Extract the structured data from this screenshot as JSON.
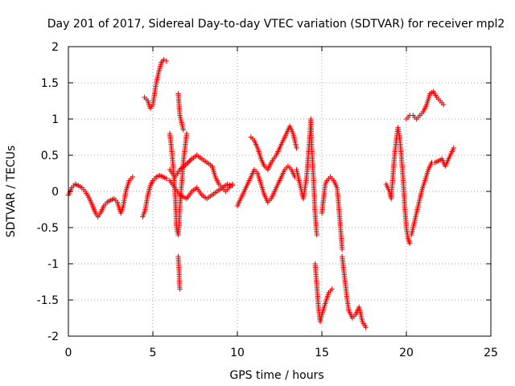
{
  "chart_data": {
    "type": "scatter",
    "title": "Day 201 of 2017, Sidereal Day-to-day VTEC variation (SDTVAR) for receiver mpl2",
    "xlabel": "GPS time / hours",
    "ylabel": "SDTVAR / TECUs",
    "xlim": [
      0,
      25
    ],
    "ylim": [
      -2,
      2
    ],
    "xticks": [
      0,
      5,
      10,
      15,
      20,
      25
    ],
    "yticks": [
      -2,
      -1.5,
      -1,
      -0.5,
      0,
      0.5,
      1,
      1.5,
      2
    ],
    "xtick_labels": [
      "0",
      "5",
      "10",
      "15",
      "20",
      "25"
    ],
    "ytick_labels": [
      "-2",
      "-1.5",
      "-1",
      "-0.5",
      "0",
      "0.5",
      "1",
      "1.5",
      "2"
    ],
    "grid": true,
    "marker": "plus",
    "color": "#ff0000",
    "series": [
      {
        "name": "seg-0-3.8",
        "points": [
          [
            0.0,
            -0.05
          ],
          [
            0.2,
            0.05
          ],
          [
            0.4,
            0.1
          ],
          [
            0.6,
            0.08
          ],
          [
            0.8,
            0.05
          ],
          [
            1.0,
            0.0
          ],
          [
            1.2,
            -0.08
          ],
          [
            1.4,
            -0.18
          ],
          [
            1.6,
            -0.3
          ],
          [
            1.75,
            -0.35
          ],
          [
            1.9,
            -0.3
          ],
          [
            2.1,
            -0.2
          ],
          [
            2.3,
            -0.15
          ],
          [
            2.5,
            -0.12
          ],
          [
            2.7,
            -0.1
          ],
          [
            2.9,
            -0.15
          ],
          [
            3.1,
            -0.3
          ],
          [
            3.25,
            -0.2
          ],
          [
            3.4,
            0.0
          ],
          [
            3.6,
            0.15
          ],
          [
            3.8,
            0.2
          ]
        ]
      },
      {
        "name": "seg-4.5-5.8-high",
        "points": [
          [
            4.5,
            1.3
          ],
          [
            4.7,
            1.25
          ],
          [
            4.85,
            1.15
          ],
          [
            5.0,
            1.2
          ],
          [
            5.1,
            1.35
          ],
          [
            5.2,
            1.5
          ],
          [
            5.35,
            1.65
          ],
          [
            5.5,
            1.78
          ],
          [
            5.65,
            1.82
          ],
          [
            5.8,
            1.8
          ]
        ]
      },
      {
        "name": "seg-4.4-5.8-low",
        "points": [
          [
            4.4,
            -0.35
          ],
          [
            4.55,
            -0.25
          ],
          [
            4.7,
            -0.05
          ],
          [
            4.85,
            0.08
          ],
          [
            5.0,
            0.15
          ],
          [
            5.2,
            0.2
          ],
          [
            5.4,
            0.22
          ],
          [
            5.6,
            0.2
          ],
          [
            5.8,
            0.18
          ]
        ]
      },
      {
        "name": "seg-6-7-spikes",
        "points": [
          [
            6.0,
            0.8
          ],
          [
            6.1,
            0.6
          ],
          [
            6.2,
            0.35
          ],
          [
            6.3,
            0.0
          ],
          [
            6.35,
            -0.2
          ],
          [
            6.4,
            -0.5
          ],
          [
            6.5,
            -0.6
          ],
          [
            6.55,
            -0.45
          ],
          [
            6.6,
            -0.2
          ],
          [
            6.7,
            0.1
          ],
          [
            6.8,
            0.4
          ],
          [
            6.9,
            0.6
          ],
          [
            7.0,
            0.8
          ]
        ]
      },
      {
        "name": "seg-6.5-6.8-tall",
        "points": [
          [
            6.5,
            1.35
          ],
          [
            6.55,
            1.2
          ],
          [
            6.6,
            1.05
          ],
          [
            6.7,
            0.95
          ],
          [
            6.8,
            0.85
          ]
        ]
      },
      {
        "name": "seg-6.5-6.7-deep",
        "points": [
          [
            6.5,
            -0.9
          ],
          [
            6.55,
            -1.1
          ],
          [
            6.58,
            -1.3
          ],
          [
            6.6,
            -1.35
          ]
        ]
      },
      {
        "name": "seg-6-9.8-upper",
        "points": [
          [
            6.0,
            0.3
          ],
          [
            6.3,
            0.2
          ],
          [
            6.6,
            0.3
          ],
          [
            7.0,
            0.38
          ],
          [
            7.3,
            0.45
          ],
          [
            7.6,
            0.5
          ],
          [
            7.9,
            0.45
          ],
          [
            8.2,
            0.4
          ],
          [
            8.5,
            0.35
          ],
          [
            8.7,
            0.2
          ],
          [
            8.9,
            0.1
          ],
          [
            9.1,
            0.05
          ],
          [
            9.3,
            0.0
          ],
          [
            9.5,
            0.05
          ],
          [
            9.7,
            0.1
          ]
        ]
      },
      {
        "name": "seg-6-9.8-lower",
        "points": [
          [
            6.0,
            0.15
          ],
          [
            6.3,
            0.05
          ],
          [
            6.6,
            -0.05
          ],
          [
            7.0,
            -0.1
          ],
          [
            7.3,
            0.0
          ],
          [
            7.6,
            0.05
          ],
          [
            7.9,
            -0.05
          ],
          [
            8.2,
            -0.1
          ],
          [
            8.5,
            -0.05
          ],
          [
            8.8,
            0.0
          ],
          [
            9.1,
            0.05
          ],
          [
            9.4,
            0.1
          ],
          [
            9.7,
            0.08
          ]
        ]
      },
      {
        "name": "seg-10-13.5-lower",
        "points": [
          [
            10.0,
            -0.2
          ],
          [
            10.2,
            -0.1
          ],
          [
            10.4,
            0.0
          ],
          [
            10.6,
            0.1
          ],
          [
            10.8,
            0.2
          ],
          [
            11.0,
            0.3
          ],
          [
            11.2,
            0.25
          ],
          [
            11.4,
            0.1
          ],
          [
            11.6,
            -0.05
          ],
          [
            11.8,
            -0.15
          ],
          [
            12.0,
            -0.1
          ],
          [
            12.2,
            0.0
          ],
          [
            12.4,
            0.1
          ],
          [
            12.6,
            0.2
          ],
          [
            12.8,
            0.3
          ],
          [
            13.0,
            0.35
          ],
          [
            13.2,
            0.3
          ],
          [
            13.4,
            0.2
          ]
        ]
      },
      {
        "name": "seg-10.8-13.5-upper",
        "points": [
          [
            10.8,
            0.75
          ],
          [
            11.0,
            0.7
          ],
          [
            11.2,
            0.6
          ],
          [
            11.4,
            0.45
          ],
          [
            11.6,
            0.35
          ],
          [
            11.8,
            0.3
          ],
          [
            12.0,
            0.4
          ],
          [
            12.3,
            0.5
          ],
          [
            12.6,
            0.65
          ],
          [
            12.9,
            0.8
          ],
          [
            13.1,
            0.9
          ],
          [
            13.3,
            0.8
          ],
          [
            13.5,
            0.6
          ]
        ]
      },
      {
        "name": "seg-13.5-14.5",
        "points": [
          [
            13.5,
            0.3
          ],
          [
            13.7,
            0.1
          ],
          [
            13.9,
            -0.1
          ],
          [
            14.1,
            0.2
          ],
          [
            14.2,
            0.5
          ],
          [
            14.3,
            0.8
          ],
          [
            14.35,
            1.0
          ],
          [
            14.4,
            0.6
          ],
          [
            14.5,
            0.2
          ],
          [
            14.6,
            -0.3
          ],
          [
            14.7,
            -0.6
          ]
        ]
      },
      {
        "name": "seg-14.6-15.6-deep",
        "points": [
          [
            14.6,
            -1.0
          ],
          [
            14.7,
            -1.3
          ],
          [
            14.8,
            -1.6
          ],
          [
            14.9,
            -1.8
          ],
          [
            15.0,
            -1.7
          ],
          [
            15.2,
            -1.55
          ],
          [
            15.4,
            -1.4
          ],
          [
            15.6,
            -1.35
          ]
        ]
      },
      {
        "name": "seg-15-16.2-mid",
        "points": [
          [
            15.0,
            -0.3
          ],
          [
            15.1,
            -0.1
          ],
          [
            15.2,
            0.1
          ],
          [
            15.3,
            0.15
          ],
          [
            15.5,
            0.2
          ],
          [
            15.7,
            0.15
          ],
          [
            15.9,
            0.05
          ],
          [
            16.0,
            -0.2
          ],
          [
            16.1,
            -0.5
          ],
          [
            16.2,
            -0.8
          ]
        ]
      },
      {
        "name": "seg-16.2-17.7-descent",
        "points": [
          [
            16.2,
            -0.9
          ],
          [
            16.3,
            -1.1
          ],
          [
            16.4,
            -1.3
          ],
          [
            16.5,
            -1.5
          ],
          [
            16.6,
            -1.65
          ],
          [
            16.8,
            -1.75
          ],
          [
            17.0,
            -1.7
          ],
          [
            17.2,
            -1.6
          ],
          [
            17.4,
            -1.8
          ],
          [
            17.6,
            -1.88
          ]
        ]
      },
      {
        "name": "seg-18.8-20.3",
        "points": [
          [
            18.8,
            0.1
          ],
          [
            19.0,
            0.0
          ],
          [
            19.1,
            -0.1
          ],
          [
            19.2,
            0.2
          ],
          [
            19.3,
            0.5
          ],
          [
            19.4,
            0.7
          ],
          [
            19.5,
            0.88
          ],
          [
            19.6,
            0.75
          ],
          [
            19.7,
            0.5
          ],
          [
            19.8,
            0.2
          ],
          [
            19.9,
            -0.2
          ],
          [
            20.0,
            -0.5
          ],
          [
            20.1,
            -0.65
          ],
          [
            20.2,
            -0.72
          ]
        ]
      },
      {
        "name": "seg-20-22.5-upper",
        "points": [
          [
            20.0,
            1.0
          ],
          [
            20.2,
            1.05
          ],
          [
            20.4,
            1.05
          ],
          [
            20.6,
            1.0
          ],
          [
            20.8,
            1.05
          ],
          [
            21.0,
            1.1
          ],
          [
            21.2,
            1.2
          ],
          [
            21.4,
            1.35
          ],
          [
            21.6,
            1.38
          ],
          [
            21.8,
            1.3
          ],
          [
            22.0,
            1.25
          ],
          [
            22.2,
            1.2
          ]
        ]
      },
      {
        "name": "seg-20.3-22.8-lower",
        "points": [
          [
            20.3,
            -0.6
          ],
          [
            20.5,
            -0.4
          ],
          [
            20.7,
            -0.2
          ],
          [
            20.9,
            0.0
          ],
          [
            21.1,
            0.15
          ],
          [
            21.3,
            0.3
          ],
          [
            21.5,
            0.4
          ],
          [
            21.7,
            0.4
          ],
          [
            21.9,
            0.42
          ],
          [
            22.1,
            0.45
          ],
          [
            22.3,
            0.35
          ],
          [
            22.5,
            0.45
          ],
          [
            22.7,
            0.55
          ],
          [
            22.8,
            0.6
          ]
        ]
      }
    ]
  }
}
